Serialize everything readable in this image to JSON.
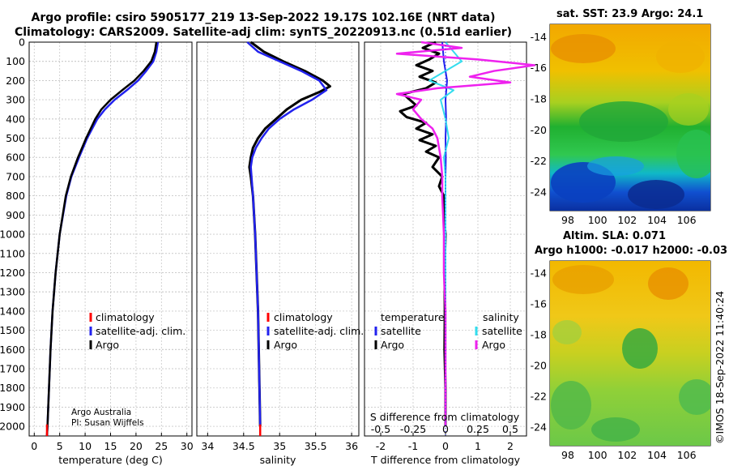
{
  "title": {
    "line1": "Argo profile: csiro 5905177_219 13-Sep-2022 19.17S 102.16E (NRT data)",
    "line2": "Climatology: CARS2009. Satellite-adj clim: synTS_20220913.nc (0.51d earlier)"
  },
  "credit": {
    "line1": "Argo Australia",
    "line2": "PI: Susan Wijffels"
  },
  "stamp": "©IMOS 18-Sep-2022 11:40:24",
  "colors": {
    "climatology": "#ff0000",
    "satellite_adj": "#2222ee",
    "argo": "#000000",
    "satellite_T": "#2222ee",
    "satellite_S": "#33ddee",
    "argo_S": "#ee22ee"
  },
  "chart_data": [
    {
      "type": "line",
      "id": "temperature",
      "xlabel": "temperature (deg C)",
      "ylabel": "",
      "xlim": [
        -1,
        31
      ],
      "ylim": [
        0,
        2050
      ],
      "xticks": [
        0,
        5,
        10,
        15,
        20,
        25,
        30
      ],
      "yticks": [
        0,
        100,
        200,
        300,
        400,
        500,
        600,
        700,
        800,
        900,
        1000,
        1100,
        1200,
        1300,
        1400,
        1500,
        1600,
        1700,
        1800,
        1900,
        2000
      ],
      "legend": [
        "climatology",
        "satellite-adj. clim.",
        "Argo"
      ],
      "series": [
        {
          "name": "satellite-adj. clim.",
          "depth": [
            0,
            50,
            100,
            150,
            200,
            250,
            300,
            350,
            400,
            450,
            500,
            600,
            700,
            800,
            1000,
            1200,
            1400,
            1600,
            1800,
            2000,
            2050
          ],
          "values": [
            24.3,
            24.0,
            23.4,
            22.0,
            20.4,
            18.2,
            15.8,
            13.9,
            12.4,
            11.4,
            10.4,
            8.8,
            7.3,
            6.3,
            5.0,
            4.2,
            3.6,
            3.2,
            2.9,
            2.6,
            2.5
          ]
        },
        {
          "name": "Argo",
          "depth": [
            0,
            50,
            100,
            150,
            200,
            250,
            300,
            350,
            400,
            450,
            500,
            600,
            700,
            800,
            1000,
            1200,
            1400,
            1600,
            1800,
            2000,
            2050
          ],
          "values": [
            24.0,
            23.7,
            23.0,
            21.5,
            19.7,
            17.3,
            15.0,
            13.2,
            12.0,
            11.1,
            10.2,
            8.6,
            7.2,
            6.2,
            5.0,
            4.2,
            3.6,
            3.2,
            2.9,
            2.6,
            2.5
          ]
        },
        {
          "name": "climatology",
          "depth": [
            1990,
            2050
          ],
          "values": [
            2.5,
            2.5
          ]
        }
      ]
    },
    {
      "type": "line",
      "id": "salinity",
      "xlabel": "salinity",
      "xlim": [
        33.85,
        36.1
      ],
      "ylim": [
        0,
        2050
      ],
      "xticks": [
        34,
        34.5,
        35,
        35.5,
        36
      ],
      "xtick_labels": [
        "34",
        "34.5",
        "35",
        "35.5",
        "36"
      ],
      "series": [
        {
          "name": "satellite-adj. clim.",
          "depth": [
            0,
            50,
            100,
            150,
            200,
            250,
            300,
            350,
            400,
            450,
            500,
            550,
            600,
            650,
            700,
            800,
            1000,
            1200,
            1400,
            1600,
            1800,
            2000
          ],
          "values": [
            34.55,
            34.7,
            35.0,
            35.3,
            35.55,
            35.65,
            35.45,
            35.2,
            35.0,
            34.85,
            34.75,
            34.67,
            34.62,
            34.6,
            34.61,
            34.63,
            34.66,
            34.68,
            34.7,
            34.71,
            34.72,
            34.73
          ]
        },
        {
          "name": "Argo",
          "depth": [
            0,
            50,
            100,
            150,
            200,
            230,
            260,
            300,
            350,
            400,
            450,
            500,
            550,
            600,
            650,
            700,
            800,
            1000,
            1200,
            1400,
            1600,
            1800,
            2000
          ],
          "values": [
            34.6,
            34.78,
            35.05,
            35.35,
            35.6,
            35.7,
            35.55,
            35.3,
            35.1,
            34.95,
            34.8,
            34.7,
            34.63,
            34.6,
            34.58,
            34.6,
            34.63,
            34.66,
            34.68,
            34.7,
            34.71,
            34.72,
            34.73
          ]
        },
        {
          "name": "climatology",
          "depth": [
            1990,
            2050
          ],
          "values": [
            34.73,
            34.73
          ]
        }
      ]
    },
    {
      "type": "line",
      "id": "difference",
      "xlabel": "T difference from climatology",
      "xlabel_top": "S difference from climatology",
      "xlim": [
        -2.5,
        2.5
      ],
      "ylim": [
        0,
        2050
      ],
      "xticks": [
        -2,
        -1,
        0,
        1,
        2
      ],
      "secondary_xticks": [
        "-0.5",
        "-0.25",
        "0",
        "0.25",
        "0.5"
      ],
      "legend_temperature": {
        "heading": "temperature",
        "items": [
          "satellite",
          "Argo"
        ]
      },
      "legend_salinity": {
        "heading": "salinity",
        "items": [
          "satellite",
          "Argo"
        ]
      },
      "series": [
        {
          "name": "Argo T diff",
          "depth": [
            0,
            30,
            60,
            90,
            120,
            150,
            180,
            210,
            240,
            270,
            300,
            330,
            360,
            390,
            420,
            450,
            480,
            510,
            540,
            570,
            600,
            650,
            700,
            750,
            800,
            900,
            1000,
            1200,
            1400,
            1600,
            1800,
            2000
          ],
          "values": [
            -0.3,
            -0.7,
            -0.2,
            -0.5,
            -0.9,
            -0.4,
            -0.8,
            -0.3,
            -0.6,
            -1.3,
            -1.1,
            -0.9,
            -1.4,
            -1.2,
            -0.6,
            -0.9,
            -0.4,
            -0.8,
            -0.3,
            -0.6,
            -0.2,
            -0.4,
            -0.1,
            -0.2,
            -0.05,
            -0.05,
            0.0,
            -0.03,
            -0.02,
            -0.03,
            0.0,
            0.0
          ]
        },
        {
          "name": "satellite T diff",
          "depth": [
            0,
            100,
            200,
            300,
            400,
            500,
            600,
            700,
            800,
            1000,
            1400,
            2000
          ],
          "values": [
            -0.1,
            -0.05,
            0.05,
            0.0,
            0.02,
            0.0,
            0.01,
            0.0,
            0.0,
            0.0,
            0.0,
            0.0
          ]
        },
        {
          "name": "Argo S diff",
          "depth": [
            0,
            30,
            60,
            90,
            120,
            150,
            180,
            210,
            240,
            270,
            300,
            350,
            400,
            450,
            500,
            600,
            700,
            800,
            1000,
            1200,
            1400,
            1600,
            1800,
            2000
          ],
          "values": [
            -0.15,
            0.1,
            -0.3,
            0.2,
            0.55,
            0.3,
            0.15,
            0.4,
            -0.05,
            -0.3,
            -0.15,
            -0.2,
            -0.15,
            -0.08,
            -0.05,
            -0.03,
            -0.02,
            -0.02,
            -0.01,
            -0.01,
            0.0,
            0.0,
            0.0,
            0.0
          ]
        },
        {
          "name": "satellite S diff",
          "depth": [
            0,
            100,
            200,
            250,
            300,
            400,
            500,
            600,
            700,
            800,
            1000,
            2000
          ],
          "values": [
            0.0,
            0.1,
            -0.1,
            0.05,
            -0.03,
            0.0,
            0.02,
            -0.01,
            0.0,
            0.0,
            0.0,
            0.0
          ]
        }
      ]
    },
    {
      "type": "heatmap",
      "id": "sst_map",
      "title": "sat. SST: 23.9 Argo: 24.1",
      "xlim": [
        96.8,
        107.6
      ],
      "ylim": [
        -25.2,
        -13.2
      ],
      "xticks": [
        98,
        100,
        102,
        104,
        106
      ],
      "yticks": [
        -14,
        -16,
        -18,
        -20,
        -22,
        -24
      ],
      "marker": {
        "lon": 102.16,
        "lat": -19.17
      }
    },
    {
      "type": "heatmap",
      "id": "sla_map",
      "title_line1": "Altim. SLA: 0.071",
      "title_line2": "Argo h1000: -0.017 h2000: -0.03",
      "xlim": [
        96.8,
        107.6
      ],
      "ylim": [
        -25.2,
        -13.2
      ],
      "xticks": [
        98,
        100,
        102,
        104,
        106
      ],
      "yticks": [
        -14,
        -16,
        -18,
        -20,
        -22,
        -24
      ],
      "marker": {
        "lon": 102.16,
        "lat": -19.17
      }
    }
  ]
}
